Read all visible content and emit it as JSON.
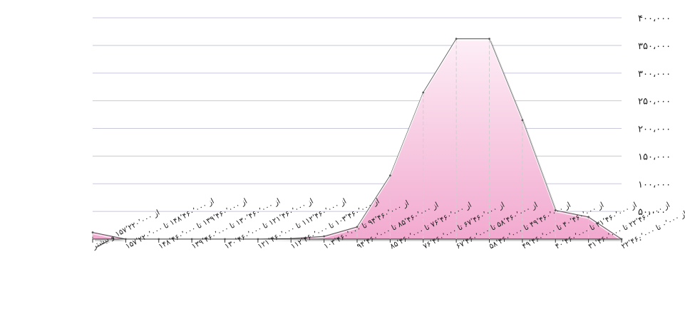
{
  "chart_data": {
    "type": "area",
    "title": "",
    "xlabel": "",
    "ylabel": "",
    "ylim": [
      0,
      400000
    ],
    "grid": true,
    "x_direction": "right-to-left",
    "yticks": [
      "۰",
      "۵۰،۰۰۰",
      "۱۰۰،۰۰۰",
      "۱۵۰،۰۰۰",
      "۲۰۰،۰۰۰",
      "۲۵۰،۰۰۰",
      "۳۰۰،۰۰۰",
      "۳۵۰،۰۰۰",
      "۴۰۰،۰۰۰"
    ],
    "categories": [
      "از ۰٬۰۰۰ تا ۲۲٬۴۶۰٬۰۰۰",
      "از ۲۲٬۴۶۰٬۰۰۰ تا ۳۱٬۴۶۰٬۰۰۰",
      "از ۳۱٬۴۶۰٬۰۰۰ تا ۴۰٬۴۶۰٬۰۰۰",
      "از ۴۰٬۴۶۰٬۰۰۰ تا ۴۹٬۴۶۰٬۰۰۰",
      "از ۴۹٬۴۶۰٬۰۰۰ تا ۵۸٬۴۶۰٬۰۰۰",
      "از ۵۸٬۴۶۰٬۰۰۰ تا ۶۷٬۴۶۰٬۰۰۰",
      "از ۶۷٬۴۶۰٬۰۰۰ تا ۷۶٬۴۶۰٬۰۰۰",
      "از ۷۶٬۴۶۰٬۰۰۰ تا ۸۵٬۴۶۰٬۰۰۰",
      "از ۸۵٬۴۶۰٬۰۰۰ تا ۹۴٬۴۶۰٬۰۰۰",
      "از ۹۴٬۴۶۰٬۰۰۰ تا ۱۰۳٬۴۶۰٬۰۰۰",
      "از ۱۰۳٬۴۶۰٬۰۰۰ تا ۱۱۲٬۴۶۰٬۰۰۰",
      "از ۱۱۲٬۴۶۰٬۰۰۰ تا ۱۲۱٬۴۶۰٬۰۰۰",
      "از ۱۲۱٬۴۶۰٬۰۰۰ تا ۱۳۰٬۴۶۰٬۰۰۰",
      "از ۱۳۰٬۴۶۰٬۰۰۰ تا ۱۳۹٬۴۶۰٬۰۰۰",
      "از ۱۳۹٬۴۶۰٬۰۰۰ تا ۱۴۸٬۴۶۰٬۰۰۰",
      "از ۱۴۸٬۴۶۰٬۰۰۰ تا ۱۵۷٬۲۲۰٬۰۰۰",
      "از ۱۵۷٬۲۲۰٬۰۰۰ و بیشتر"
    ],
    "values": [
      0,
      40000,
      52000,
      215000,
      362000,
      362000,
      265000,
      115000,
      22000,
      5000,
      1000,
      0,
      0,
      0,
      0,
      0,
      12000
    ],
    "colors": {
      "area_light": "#fdeef6",
      "area_dark": "#f2a9cf",
      "edge": "#5a5a5a",
      "grid": "#c8c8dc",
      "dashes": "#cfcfcf"
    }
  }
}
